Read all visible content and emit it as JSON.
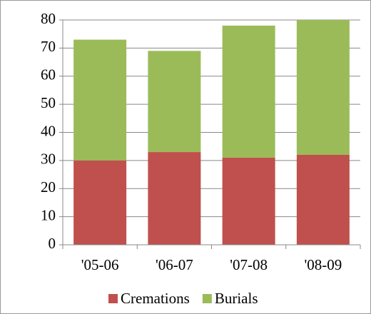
{
  "chart_data": {
    "type": "stacked_bar",
    "categories": [
      "'05-06",
      "'06-07",
      "'07-08",
      "'08-09"
    ],
    "series": [
      {
        "name": "Cremations",
        "color": "#c0504d",
        "values": [
          30,
          33,
          31,
          32
        ]
      },
      {
        "name": "Burials",
        "color": "#9bbb59",
        "values": [
          43,
          36,
          47,
          48
        ]
      }
    ],
    "ylim": [
      0,
      80
    ],
    "yticks": [
      0,
      10,
      20,
      30,
      40,
      50,
      60,
      70,
      80
    ],
    "grid": true,
    "legend": "bottom"
  }
}
